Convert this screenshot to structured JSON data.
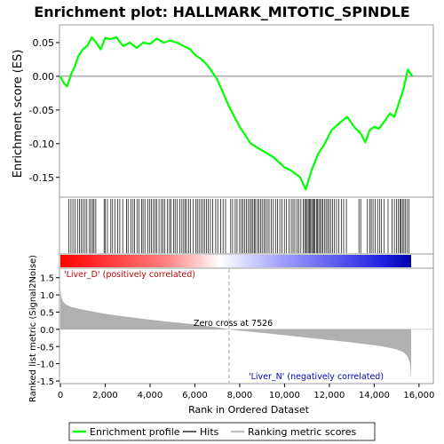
{
  "chart_data": {
    "type": "line",
    "title": "Enrichment plot: HALLMARK_MITOTIC_SPINDLE",
    "xlabel": "Rank in Ordered Dataset",
    "xlim": [
      0,
      16600
    ],
    "x_ticks": [
      0,
      2000,
      4000,
      6000,
      8000,
      10000,
      12000,
      14000,
      16000
    ],
    "x_tick_labels": [
      "0",
      "2,000",
      "4,000",
      "6,000",
      "8,000",
      "10,000",
      "12,000",
      "14,000",
      "16,000"
    ],
    "es_panel": {
      "ylabel": "Enrichment score (ES)",
      "ylim": [
        -0.178,
        0.075
      ],
      "y_ticks": [
        0.05,
        0.0,
        -0.05,
        -0.1,
        -0.15
      ],
      "y_tick_labels": [
        "0.05",
        "0.00",
        "-0.05",
        "-0.10",
        "-0.15"
      ],
      "series": [
        {
          "name": "Enrichment profile",
          "color": "#00ff00",
          "x": [
            0,
            150,
            300,
            500,
            650,
            800,
            1000,
            1200,
            1400,
            1600,
            1800,
            2000,
            2200,
            2500,
            2800,
            3100,
            3400,
            3700,
            4000,
            4300,
            4600,
            4900,
            5200,
            5500,
            5800,
            6000,
            6300,
            6600,
            7000,
            7526,
            8000,
            8500,
            9000,
            9500,
            10000,
            10300,
            10700,
            10950,
            11200,
            11500,
            11800,
            12100,
            12500,
            12800,
            13100,
            13400,
            13600,
            13800,
            14000,
            14200,
            14500,
            14700,
            14900,
            15100,
            15300,
            15500,
            15700
          ],
          "y": [
            0.0,
            -0.01,
            -0.015,
            0.005,
            0.015,
            0.03,
            0.04,
            0.045,
            0.058,
            0.05,
            0.04,
            0.057,
            0.055,
            0.058,
            0.045,
            0.05,
            0.042,
            0.05,
            0.048,
            0.056,
            0.05,
            0.053,
            0.05,
            0.045,
            0.04,
            0.032,
            0.025,
            0.015,
            -0.005,
            -0.045,
            -0.075,
            -0.1,
            -0.11,
            -0.12,
            -0.135,
            -0.14,
            -0.15,
            -0.168,
            -0.14,
            -0.115,
            -0.1,
            -0.08,
            -0.068,
            -0.06,
            -0.075,
            -0.085,
            -0.098,
            -0.08,
            -0.075,
            -0.078,
            -0.065,
            -0.055,
            -0.06,
            -0.04,
            -0.02,
            0.01,
            0.0
          ]
        }
      ]
    },
    "hits_panel": {
      "legend_label": "Hits",
      "hit_color": "#000000",
      "hit_ranks": [
        380,
        470,
        560,
        650,
        760,
        850,
        930,
        1020,
        1100,
        1180,
        1300,
        1360,
        1440,
        1500,
        1580,
        1950,
        2010,
        2100,
        2250,
        2330,
        2430,
        2550,
        2650,
        2780,
        2950,
        3020,
        3150,
        3240,
        3310,
        3420,
        3500,
        3620,
        3690,
        3770,
        3900,
        3990,
        4060,
        4150,
        4230,
        4290,
        4400,
        4510,
        4580,
        4650,
        4780,
        4870,
        4930,
        5050,
        5120,
        5200,
        5330,
        5420,
        5500,
        5570,
        5630,
        5720,
        5800,
        5930,
        6050,
        6110,
        6190,
        6270,
        6350,
        6430,
        6520,
        6600,
        6690,
        6790,
        6930,
        7020,
        7150,
        7260,
        7370,
        7600,
        7680,
        7800,
        7880,
        8000,
        8080,
        8150,
        8230,
        8300,
        8380,
        8460,
        8520,
        8590,
        8650,
        8710,
        8790,
        8860,
        8930,
        9000,
        9080,
        9150,
        9230,
        9310,
        9400,
        9500,
        9600,
        9690,
        9790,
        9880,
        9990,
        10090,
        10200,
        10300,
        10380,
        10460,
        10560,
        10640,
        10730,
        10830,
        10900,
        10960,
        11010,
        11060,
        11110,
        11160,
        11210,
        11260,
        11310,
        11360,
        11420,
        11470,
        11530,
        11590,
        11650,
        11710,
        11780,
        11850,
        11920,
        11990,
        12060,
        12140,
        12230,
        12320,
        12420,
        12530,
        12640,
        12760,
        13320,
        13400,
        13700,
        13800,
        13870,
        13950,
        14050,
        14150,
        14250,
        14330,
        14450,
        14620,
        14800,
        14900,
        15000,
        15080,
        15150,
        15200,
        15260,
        15330,
        15400,
        15480,
        15560
      ],
      "ranking_band": {
        "left_color": "#ff0000",
        "mid_color": "#ffffff",
        "right_color": "#0000ff",
        "pos_label": "'Liver_D' (positively correlated)",
        "neg_label": "'Liver_N' (negatively correlated)",
        "pos_label_color": "#c00000",
        "neg_label_color": "#0000c0"
      }
    },
    "metric_panel": {
      "ylabel": "Ranked list metric (Signal2Noise)",
      "ylim": [
        -1.55,
        1.75
      ],
      "y_ticks": [
        1.5,
        1.0,
        0.5,
        0.0,
        -0.5,
        -1.0,
        -1.5
      ],
      "y_tick_labels": [
        "1.5",
        "1.0",
        "0.5",
        "0.0",
        "-0.5",
        "-1.0",
        "-1.5"
      ],
      "fill_color": "#b0b0b0",
      "zero_cross_rank": 7526,
      "zero_cross_label": "Zero cross at 7526",
      "curve": {
        "x": [
          0,
          40,
          120,
          250,
          500,
          1000,
          2000,
          3000,
          4000,
          5000,
          6000,
          7000,
          7526,
          8000,
          9000,
          10000,
          11000,
          12000,
          13000,
          14000,
          14500,
          15000,
          15300,
          15500,
          15600,
          15650
        ],
        "y": [
          1.2,
          0.95,
          0.8,
          0.72,
          0.65,
          0.57,
          0.45,
          0.36,
          0.28,
          0.21,
          0.14,
          0.06,
          0.0,
          -0.04,
          -0.1,
          -0.17,
          -0.24,
          -0.31,
          -0.38,
          -0.46,
          -0.51,
          -0.58,
          -0.66,
          -0.8,
          -1.0,
          -1.45
        ]
      }
    },
    "legend": {
      "position": "bottom",
      "items": [
        {
          "label": "Enrichment profile",
          "color": "#00ff00"
        },
        {
          "label": "Hits",
          "color": "#606060"
        },
        {
          "label": "Ranking metric scores",
          "color": "#c0c0c0"
        }
      ]
    }
  }
}
